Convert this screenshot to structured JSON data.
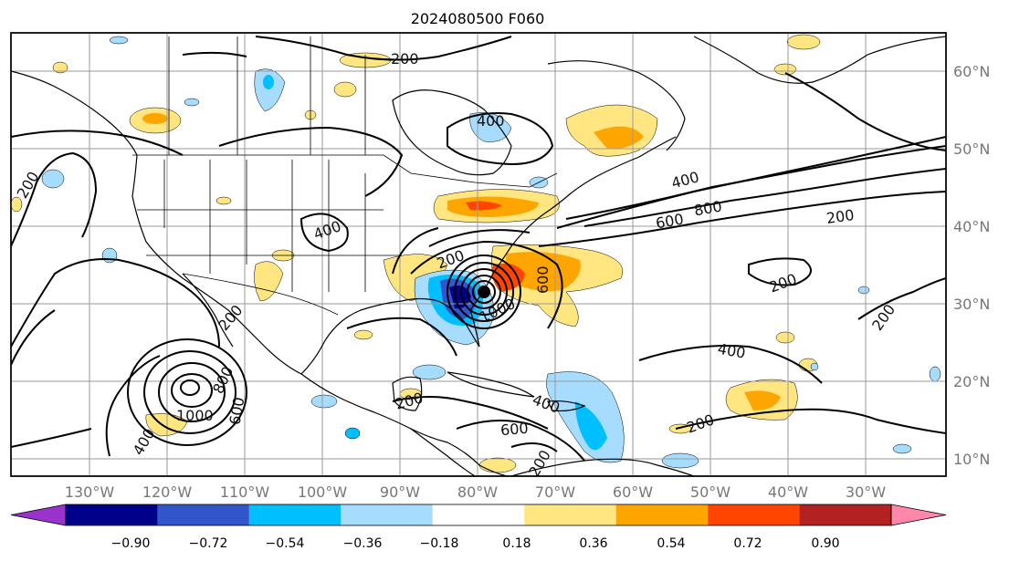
{
  "title": "2024080500 F060",
  "lon_labels": [
    "130°W",
    "120°W",
    "110°W",
    "100°W",
    "90°W",
    "80°W",
    "70°W",
    "60°W",
    "50°W",
    "40°W",
    "30°W"
  ],
  "lat_labels": [
    "60°N",
    "50°N",
    "40°N",
    "30°N",
    "20°N",
    "10°N"
  ],
  "colorbar": {
    "ticks": [
      "−0.90",
      "−0.72",
      "−0.54",
      "−0.36",
      "−0.18",
      "0.18",
      "0.36",
      "0.54",
      "0.72",
      "0.90"
    ],
    "colors": [
      "#9933cc",
      "#00008b",
      "#3355cc",
      "#00bfff",
      "#a6dcff",
      "#ffffff",
      "#ffe680",
      "#ffa500",
      "#ff4500",
      "#b22222",
      "#ff88aa"
    ]
  },
  "contour_labels": [
    {
      "text": "200",
      "id": "200-north-atlantic-canada"
    },
    {
      "text": "400",
      "id": "400-hudson"
    },
    {
      "text": "200",
      "id": "200-west-coast"
    },
    {
      "text": "400",
      "id": "400-plains"
    },
    {
      "text": "400",
      "id": "400-labrador-sea"
    },
    {
      "text": "800",
      "id": "800-atlantic"
    },
    {
      "text": "600",
      "id": "600-atlantic"
    },
    {
      "text": "200",
      "id": "200-central-atlantic"
    },
    {
      "text": "200",
      "id": "200-southeast-us"
    },
    {
      "text": "600",
      "id": "600-carolinas"
    },
    {
      "text": "200",
      "id": "200-mid-atlantic"
    },
    {
      "text": "200",
      "id": "200-east-atlantic"
    },
    {
      "text": "400",
      "id": "400-subtropical-atlantic"
    },
    {
      "text": "200",
      "id": "200-baja"
    },
    {
      "text": "800",
      "id": "800-pacific"
    },
    {
      "text": "600",
      "id": "600-pacific"
    },
    {
      "text": "1000",
      "id": "1000-pacific"
    },
    {
      "text": "400",
      "id": "400-pacific"
    },
    {
      "text": "200",
      "id": "200-caribbean"
    },
    {
      "text": "400",
      "id": "400-caribbean"
    },
    {
      "text": "600",
      "id": "600-caribbean"
    },
    {
      "text": "200",
      "id": "200-south-caribbean"
    },
    {
      "text": "200",
      "id": "200-tropical-atlantic"
    },
    {
      "text": "1000",
      "id": "1000-florida"
    }
  ]
}
